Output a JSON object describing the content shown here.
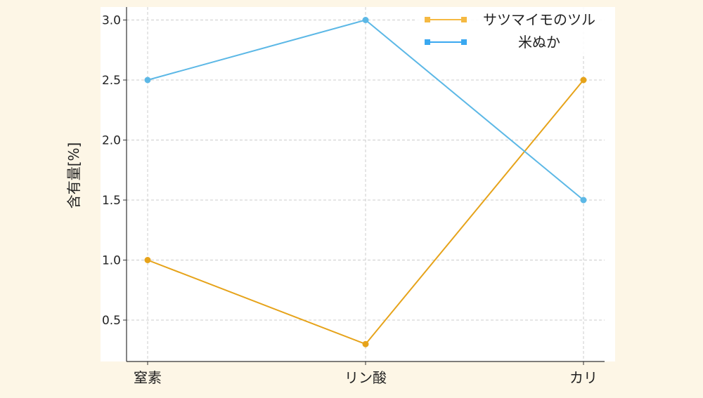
{
  "colors": {
    "page_background": "#fdf6e6",
    "plot_background": "#ffffff",
    "grid": "#cccccc",
    "axis": "#333333"
  },
  "chart_data": {
    "type": "line",
    "title": "",
    "xlabel": "",
    "ylabel": "含有量[%]",
    "categories": [
      "窒素",
      "リン酸",
      "カリ"
    ],
    "yticks": [
      "0.5",
      "1.0",
      "1.5",
      "2.0",
      "2.5",
      "3.0"
    ],
    "ylim": [
      0.2,
      3.1
    ],
    "grid": true,
    "legend_position": "top-right",
    "series": [
      {
        "name": "サツマイモのツル",
        "values": [
          1.0,
          0.3,
          2.5
        ],
        "color": "#e6a31a",
        "legend_color": "#f5b942"
      },
      {
        "name": "米ぬか",
        "values": [
          2.5,
          3.0,
          1.5
        ],
        "color": "#5cb8e6",
        "legend_color": "#3aa8f0"
      }
    ]
  }
}
